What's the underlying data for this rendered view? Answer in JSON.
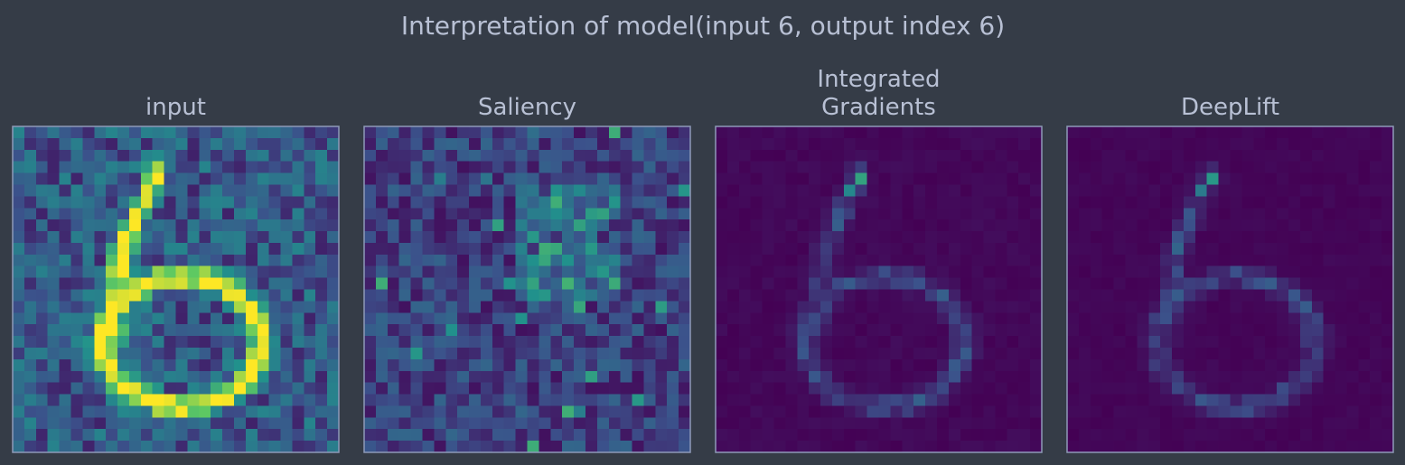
{
  "title": "Interpretation of model(input 6, output index 6)",
  "panels": [
    {
      "title": [
        "input"
      ]
    },
    {
      "title": [
        "Saliency"
      ]
    },
    {
      "title": [
        "Integrated",
        "Gradients"
      ]
    },
    {
      "title": [
        "DeepLift"
      ]
    }
  ]
}
